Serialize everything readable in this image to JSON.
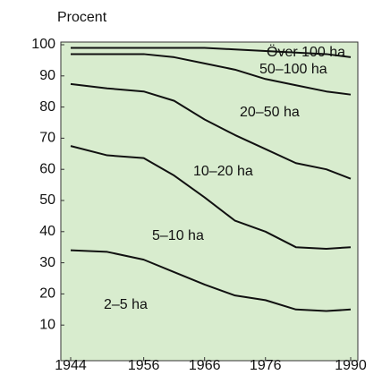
{
  "chart_data": {
    "type": "line",
    "y_label": "Procent",
    "x": [
      1944,
      1950,
      1956,
      1961,
      1966,
      1971,
      1976,
      1981,
      1986,
      1990
    ],
    "series": [
      {
        "values": [
          99,
          99,
          99,
          99,
          99,
          98.5,
          98,
          97.5,
          97,
          96
        ]
      },
      {
        "values": [
          97,
          97,
          97,
          96,
          94,
          92,
          89,
          87,
          85,
          84
        ]
      },
      {
        "values": [
          87.4,
          86,
          85,
          82,
          76,
          71,
          66.5,
          62,
          60,
          57
        ]
      },
      {
        "values": [
          67.5,
          64.5,
          63.6,
          58,
          51,
          43.5,
          40,
          35,
          34.5,
          35
        ]
      },
      {
        "values": [
          34,
          33.5,
          31,
          27,
          23,
          19.5,
          18,
          15,
          14.5,
          15
        ]
      }
    ],
    "color": "#111111",
    "annotations": [
      "Över 100 ha",
      "50–100 ha",
      "20–50 ha",
      "10–20 ha",
      "5–10 ha",
      "2–5 ha"
    ],
    "xlim": [
      1944,
      1990
    ],
    "xticks": [
      1944,
      1956,
      1966,
      1976,
      1990
    ],
    "ylim": [
      0,
      100
    ],
    "yticks": [
      10,
      20,
      30,
      40,
      50,
      60,
      70,
      80,
      90,
      100
    ],
    "grid": false
  }
}
